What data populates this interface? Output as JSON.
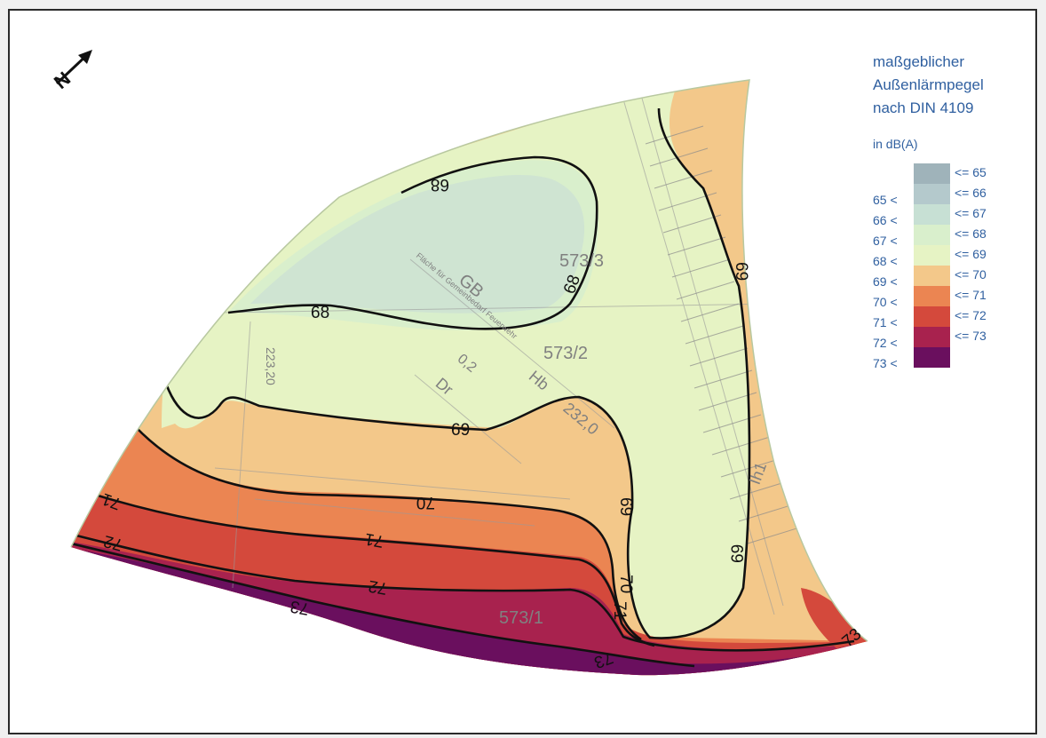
{
  "legend": {
    "title_line1": "maßgeblicher",
    "title_line2": "Außenlärmpegel",
    "title_line3": "nach DIN 4109",
    "unit": "in dB(A)",
    "items": [
      {
        "lower": "",
        "upper": "<= 65",
        "color": "#9fb3ba"
      },
      {
        "lower": "65 <",
        "upper": "<= 66",
        "color": "#b4c9cc"
      },
      {
        "lower": "66 <",
        "upper": "<= 67",
        "color": "#c7e0d4"
      },
      {
        "lower": "67 <",
        "upper": "<= 68",
        "color": "#d9efcc"
      },
      {
        "lower": "68 <",
        "upper": "<= 69",
        "color": "#e6f3c4"
      },
      {
        "lower": "69 <",
        "upper": "<= 70",
        "color": "#f3c88a"
      },
      {
        "lower": "70 <",
        "upper": "<= 71",
        "color": "#eb8552"
      },
      {
        "lower": "71 <",
        "upper": "<= 72",
        "color": "#d4493c"
      },
      {
        "lower": "72 <",
        "upper": "<= 73",
        "color": "#a8224e"
      },
      {
        "lower": "73 <",
        "upper": "",
        "color": "#6a0f5e"
      }
    ]
  },
  "contour_labels": {
    "c68_a": "68",
    "c68_b": "68",
    "c68_top": "68",
    "c69_a": "69",
    "c69_b": "69",
    "c69_c": "69",
    "c69_d": "69",
    "c70_a": "70",
    "c70_b": "70",
    "c71_a": "71",
    "c71_b": "71",
    "c71_c": "71",
    "c72_a": "72",
    "c72_b": "72",
    "c73_a": "73",
    "c73_b": "73",
    "c73_c": "73"
  },
  "plan_labels": {
    "parcel_1": "573/3",
    "parcel_2": "573/2",
    "parcel_3": "573/1",
    "gb": "GB",
    "dr": "Dr",
    "hb": "Hb",
    "val_02": "0,2",
    "elev_1": "232,0",
    "elev_2": "223,20",
    "fl_text": "Fläche für Gemeinbedarf Feuerwehr",
    "code": "Ih1"
  },
  "north_arrow": {
    "label": "N",
    "icon": "north-arrow-icon"
  }
}
